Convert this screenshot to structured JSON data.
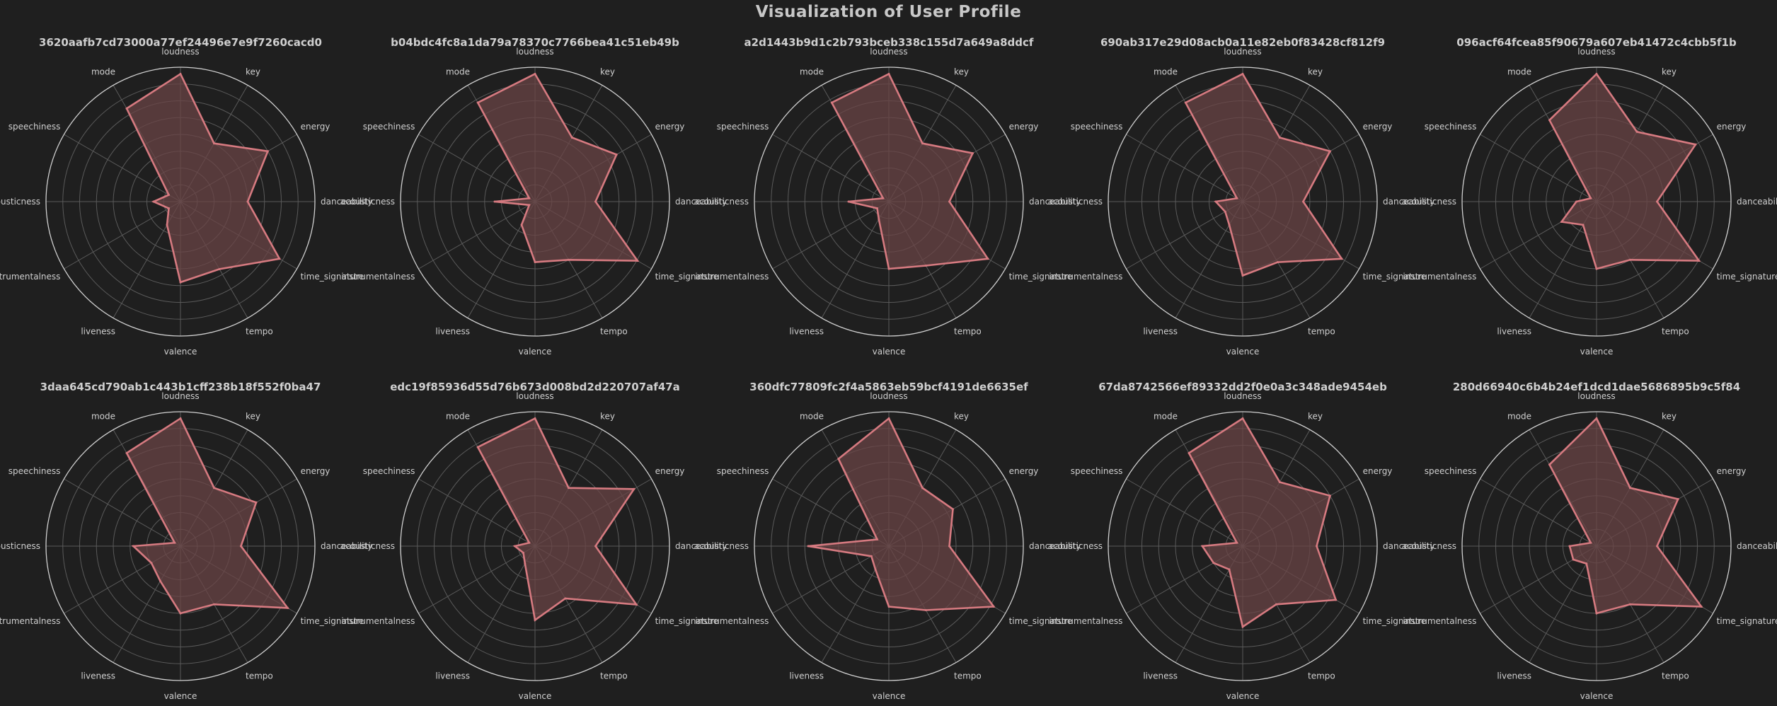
{
  "title": "Visualization of User Profile",
  "colors": {
    "background": "#1f1f1f",
    "grid": "#5a5a5a",
    "outer_ring": "#d0d0d0",
    "series_line": "#d67a80",
    "series_fill": "#6a4446",
    "text": "#cfcfcf"
  },
  "chart_data": [
    {
      "type": "radar",
      "title": "3620aafb7cd73000a77ef24496e7e9f7260cacd0",
      "categories": [
        "loudness",
        "key",
        "energy",
        "danceability",
        "time_signature",
        "tempo",
        "valence",
        "liveness",
        "instrumentalness",
        "acousticness",
        "speechiness",
        "mode"
      ],
      "values": [
        0.95,
        0.5,
        0.75,
        0.5,
        0.85,
        0.58,
        0.6,
        0.2,
        0.1,
        0.2,
        0.1,
        0.8
      ],
      "rlim": [
        0,
        1
      ],
      "grid": true
    },
    {
      "type": "radar",
      "title": "b04bdc4fc8a1da79a78370c7766bea41c51eb49b",
      "categories": [
        "loudness",
        "key",
        "energy",
        "danceability",
        "time_signature",
        "tempo",
        "valence",
        "liveness",
        "instrumentalness",
        "acousticness",
        "speechiness",
        "mode"
      ],
      "values": [
        0.95,
        0.55,
        0.7,
        0.45,
        0.88,
        0.5,
        0.45,
        0.2,
        0.05,
        0.3,
        0.05,
        0.85
      ],
      "rlim": [
        0,
        1
      ],
      "grid": true
    },
    {
      "type": "radar",
      "title": "a2d1443b9d1c2b793bceb338c155d7a649a8ddcf",
      "categories": [
        "loudness",
        "key",
        "energy",
        "danceability",
        "time_signature",
        "tempo",
        "valence",
        "liveness",
        "instrumentalness",
        "acousticness",
        "speechiness",
        "mode"
      ],
      "values": [
        0.95,
        0.5,
        0.72,
        0.45,
        0.85,
        0.55,
        0.5,
        0.15,
        0.1,
        0.3,
        0.05,
        0.85
      ],
      "rlim": [
        0,
        1
      ],
      "grid": true
    },
    {
      "type": "radar",
      "title": "690ab317e29d08acb0a11e82eb0f83428cf812f9",
      "categories": [
        "loudness",
        "key",
        "energy",
        "danceability",
        "time_signature",
        "tempo",
        "valence",
        "liveness",
        "instrumentalness",
        "acousticness",
        "speechiness",
        "mode"
      ],
      "values": [
        0.95,
        0.55,
        0.75,
        0.45,
        0.85,
        0.52,
        0.55,
        0.2,
        0.15,
        0.2,
        0.05,
        0.85
      ],
      "rlim": [
        0,
        1
      ],
      "grid": true
    },
    {
      "type": "radar",
      "title": "096acf64fcea85f90679a607eb41472c4cbb5f1b",
      "categories": [
        "loudness",
        "key",
        "energy",
        "danceability",
        "time_signature",
        "tempo",
        "valence",
        "liveness",
        "instrumentalness",
        "acousticness",
        "speechiness",
        "mode"
      ],
      "values": [
        0.95,
        0.6,
        0.85,
        0.45,
        0.88,
        0.5,
        0.5,
        0.2,
        0.3,
        0.15,
        0.05,
        0.7
      ],
      "rlim": [
        0,
        1
      ],
      "grid": true
    },
    {
      "type": "radar",
      "title": "3daa645cd790ab1c443b1cff238b18f552f0ba47",
      "categories": [
        "loudness",
        "key",
        "energy",
        "danceability",
        "time_signature",
        "tempo",
        "valence",
        "liveness",
        "instrumentalness",
        "acousticness",
        "speechiness",
        "mode"
      ],
      "values": [
        0.95,
        0.5,
        0.65,
        0.45,
        0.92,
        0.5,
        0.5,
        0.3,
        0.25,
        0.35,
        0.05,
        0.8
      ],
      "rlim": [
        0,
        1
      ],
      "grid": true
    },
    {
      "type": "radar",
      "title": "edc19f85936d55d76b673d008bd2d220707af47a",
      "categories": [
        "loudness",
        "key",
        "energy",
        "danceability",
        "time_signature",
        "tempo",
        "valence",
        "liveness",
        "instrumentalness",
        "acousticness",
        "speechiness",
        "mode"
      ],
      "values": [
        0.95,
        0.5,
        0.85,
        0.45,
        0.87,
        0.45,
        0.55,
        0.15,
        0.1,
        0.15,
        0.05,
        0.85
      ],
      "rlim": [
        0,
        1
      ],
      "grid": true
    },
    {
      "type": "radar",
      "title": "360dfc77809fc2f4a5863eb59bcf4191de6635ef",
      "categories": [
        "loudness",
        "key",
        "energy",
        "danceability",
        "time_signature",
        "tempo",
        "valence",
        "liveness",
        "instrumentalness",
        "acousticness",
        "speechiness",
        "mode"
      ],
      "values": [
        0.95,
        0.5,
        0.55,
        0.45,
        0.9,
        0.55,
        0.45,
        0.2,
        0.15,
        0.6,
        0.1,
        0.75
      ],
      "rlim": [
        0,
        1
      ],
      "grid": true
    },
    {
      "type": "radar",
      "title": "67da8742566ef89332dd2f0e0a3c348ade9454eb",
      "categories": [
        "loudness",
        "key",
        "energy",
        "danceability",
        "time_signature",
        "tempo",
        "valence",
        "liveness",
        "instrumentalness",
        "acousticness",
        "speechiness",
        "mode"
      ],
      "values": [
        0.95,
        0.55,
        0.75,
        0.55,
        0.8,
        0.5,
        0.6,
        0.2,
        0.25,
        0.3,
        0.05,
        0.8
      ],
      "rlim": [
        0,
        1
      ],
      "grid": true
    },
    {
      "type": "radar",
      "title": "280d66940c6b4b24ef1dcd1dae5686895b9c5f84",
      "categories": [
        "loudness",
        "key",
        "energy",
        "danceability",
        "time_signature",
        "tempo",
        "valence",
        "liveness",
        "instrumentalness",
        "acousticness",
        "speechiness",
        "mode"
      ],
      "values": [
        0.95,
        0.5,
        0.7,
        0.45,
        0.9,
        0.5,
        0.5,
        0.15,
        0.2,
        0.2,
        0.05,
        0.7
      ],
      "rlim": [
        0,
        1
      ],
      "grid": true
    }
  ]
}
